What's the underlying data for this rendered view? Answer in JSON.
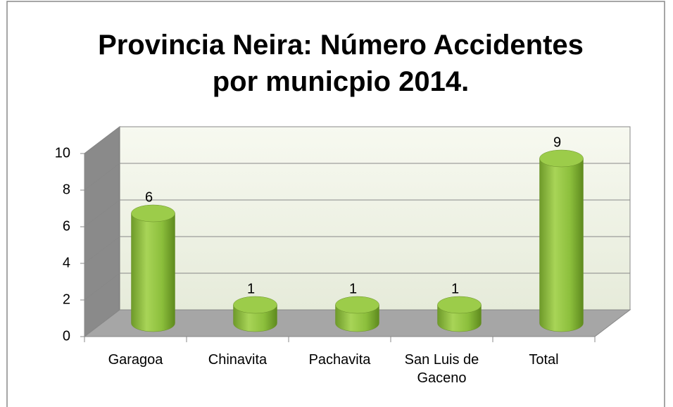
{
  "chart_data": {
    "type": "bar3d",
    "title": "Provincia Neira: Número Accidentes por municpio 2014.",
    "categories": [
      "Garagoa",
      "Chinavita",
      "Pachavita",
      "San Luis de Gaceno",
      "Total"
    ],
    "values": [
      6,
      1,
      1,
      1,
      9
    ],
    "color": "#8cbf3c",
    "ylim": [
      0,
      10
    ],
    "yticks": [
      0,
      2,
      4,
      6,
      8,
      10
    ],
    "grid": true
  }
}
